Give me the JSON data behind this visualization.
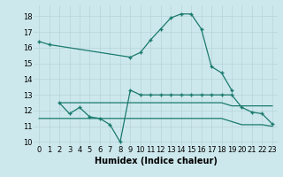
{
  "line1_x": [
    0,
    1,
    9,
    10,
    11,
    12,
    13,
    14,
    15,
    16,
    17,
    18,
    19
  ],
  "line1_y": [
    16.4,
    16.2,
    15.4,
    15.7,
    16.5,
    17.2,
    17.9,
    18.15,
    18.15,
    17.2,
    14.8,
    14.4,
    13.3
  ],
  "line2_x": [
    2,
    3,
    4,
    5,
    6,
    7,
    8,
    9,
    10,
    11,
    12,
    13,
    14,
    15,
    16,
    17,
    18,
    19,
    20,
    21,
    22,
    23
  ],
  "line2_y": [
    12.5,
    11.8,
    12.2,
    11.6,
    11.5,
    11.1,
    10.0,
    13.3,
    13.0,
    13.0,
    13.0,
    13.0,
    13.0,
    13.0,
    13.0,
    13.0,
    13.0,
    13.0,
    12.2,
    11.9,
    11.8,
    11.15
  ],
  "line3_x": [
    2,
    3,
    4,
    5,
    6,
    7,
    8,
    9,
    10,
    11,
    12,
    13,
    14,
    15,
    16,
    17,
    18,
    19,
    20,
    21,
    22,
    23
  ],
  "line3_y": [
    12.5,
    12.5,
    12.5,
    12.5,
    12.5,
    12.5,
    12.5,
    12.5,
    12.5,
    12.5,
    12.5,
    12.5,
    12.5,
    12.5,
    12.5,
    12.5,
    12.5,
    12.3,
    12.3,
    12.3,
    12.3,
    12.3
  ],
  "line4_x": [
    0,
    1,
    2,
    3,
    4,
    5,
    6,
    7,
    8,
    9,
    10,
    11,
    12,
    13,
    14,
    15,
    16,
    17,
    18,
    19,
    20,
    21,
    22,
    23
  ],
  "line4_y": [
    11.5,
    11.5,
    11.5,
    11.5,
    11.5,
    11.5,
    11.5,
    11.5,
    11.5,
    11.5,
    11.5,
    11.5,
    11.5,
    11.5,
    11.5,
    11.5,
    11.5,
    11.5,
    11.5,
    11.3,
    11.1,
    11.1,
    11.1,
    11.0
  ],
  "bg_color": "#cde8ec",
  "line_color": "#1a7a6e",
  "grid_color": "#b5d5d8",
  "xlabel": "Humidex (Indice chaleur)",
  "xlabel_fontsize": 7,
  "tick_fontsize": 6,
  "ylim": [
    9.8,
    18.7
  ],
  "xlim": [
    -0.5,
    23.5
  ],
  "yticks": [
    10,
    11,
    12,
    13,
    14,
    15,
    16,
    17,
    18
  ],
  "xticks": [
    0,
    1,
    2,
    3,
    4,
    5,
    6,
    7,
    8,
    9,
    10,
    11,
    12,
    13,
    14,
    15,
    16,
    17,
    18,
    19,
    20,
    21,
    22,
    23
  ]
}
